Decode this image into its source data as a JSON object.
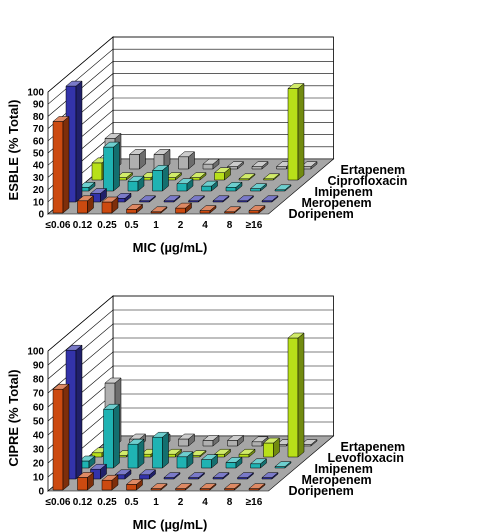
{
  "colors": {
    "Doripenem": "#cc4a10",
    "Meropenem": "#3333aa",
    "Imipenem": "#1fb3b3",
    "Ciprofloxacin": "#b8e019",
    "Levofloxacin": "#b8e019",
    "Ertapenem": "#b0b0b0",
    "floor": "#a6a6a6"
  },
  "chart_data": [
    {
      "type": "bar",
      "title": "",
      "ylabel": "ESBLE (% Total)",
      "xlabel": "MIC (µg/mL)",
      "ylim": [
        0,
        100
      ],
      "yticks": [
        "0",
        "10",
        "20",
        "30",
        "40",
        "50",
        "60",
        "70",
        "80",
        "90",
        "100"
      ],
      "categories": [
        "≤0.06",
        "0.12",
        "0.25",
        "0.5",
        "1",
        "2",
        "4",
        "8",
        "≥16"
      ],
      "series": [
        {
          "name": "Doripenem",
          "values": [
            75,
            10,
            9,
            3,
            0,
            4,
            2,
            1,
            2
          ]
        },
        {
          "name": "Meropenem",
          "values": [
            95,
            7,
            3,
            1,
            1,
            1,
            1,
            1,
            1
          ]
        },
        {
          "name": "Imipenem",
          "values": [
            3,
            36,
            8,
            17,
            6,
            4,
            3,
            2,
            1
          ]
        },
        {
          "name": "Ciprofloxacin",
          "values": [
            14,
            2,
            2,
            2,
            2,
            6,
            0,
            0,
            75
          ]
        },
        {
          "name": "Ertapenem",
          "values": [
            25,
            12,
            12,
            10,
            4,
            2,
            2,
            2,
            2
          ]
        }
      ]
    },
    {
      "type": "bar",
      "title": "",
      "ylabel": "CIPRE (% Total)",
      "xlabel": "MIC (µg/mL)",
      "ylim": [
        0,
        100
      ],
      "yticks": [
        "0",
        "10",
        "20",
        "30",
        "40",
        "50",
        "60",
        "70",
        "80",
        "90",
        "100"
      ],
      "categories": [
        "≤0.06",
        "0.12",
        "0.25",
        "0.5",
        "1",
        "2",
        "4",
        "8",
        "≥16"
      ],
      "series": [
        {
          "name": "Doripenem",
          "values": [
            72,
            9,
            7,
            4,
            1,
            1,
            1,
            1,
            1
          ]
        },
        {
          "name": "Meropenem",
          "values": [
            92,
            7,
            3,
            3,
            1,
            1,
            1,
            1,
            1
          ]
        },
        {
          "name": "Imipenem",
          "values": [
            5,
            42,
            17,
            22,
            8,
            6,
            4,
            3,
            1
          ]
        },
        {
          "name": "Levofloxacin",
          "values": [
            3,
            1,
            2,
            2,
            1,
            2,
            2,
            10,
            85
          ]
        },
        {
          "name": "Ertapenem",
          "values": [
            45,
            5,
            5,
            5,
            4,
            4,
            3,
            1,
            1
          ]
        }
      ]
    }
  ]
}
